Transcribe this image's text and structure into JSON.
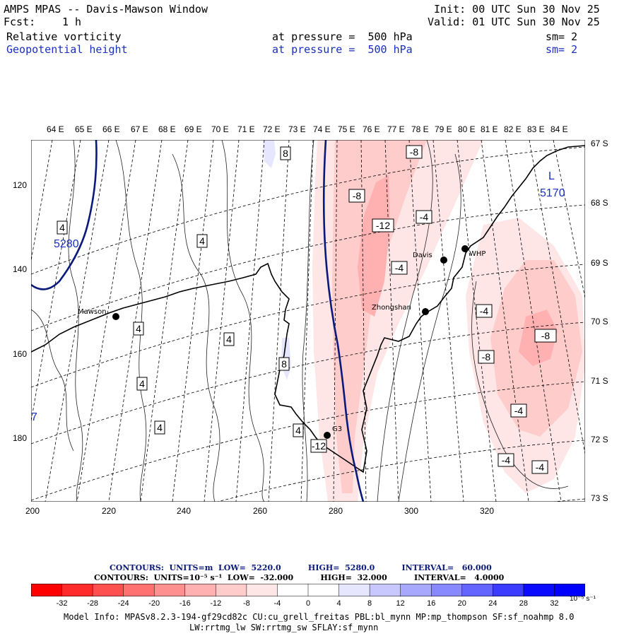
{
  "header": {
    "title": "AMPS MPAS -- Davis-Mawson Window",
    "fcst_label": "Fcst:",
    "fcst_value": "1 h",
    "init": "Init: 00 UTC Sun 30 Nov 25",
    "valid": "Valid: 01 UTC Sun 30 Nov 25",
    "field1": "Relative vorticity",
    "field2": "Geopotential height",
    "pressure1": "at pressure =  500 hPa",
    "pressure2": "at pressure =  500 hPa",
    "sm1": "sm= 2",
    "sm2": "sm= 2"
  },
  "lon_labels": [
    "64 E",
    "65 E",
    "66 E",
    "67 E",
    "68 E",
    "69 E",
    "70 E",
    "71 E",
    "72 E",
    "73 E",
    "74 E",
    "75 E",
    "76 E",
    "77 E",
    "78 E",
    "79 E",
    "80 E",
    "81 E",
    "82 E",
    "83 E",
    "84 E"
  ],
  "lat_labels": [
    "67 S",
    "68 S",
    "69 S",
    "70 S",
    "71 S",
    "72 S",
    "73 S"
  ],
  "x_ticks": [
    "200",
    "220",
    "240",
    "260",
    "280",
    "300",
    "320"
  ],
  "y_ticks": [
    "120",
    "140",
    "160",
    "180"
  ],
  "stations": [
    "Mawson",
    "Davis",
    "Zhongshan",
    "WHP",
    "G3"
  ],
  "height_labels": {
    "high": "5280",
    "low_mark": "L",
    "low": "5170",
    "edge": "7"
  },
  "contour_labels": {
    "vort_pos": [
      "8",
      "8",
      "4"
    ],
    "vort_neg": [
      "-8",
      "-8",
      "-12",
      "-4",
      "-4",
      "-4",
      "-4",
      "-12",
      "-8",
      "-8",
      "-4",
      "-4",
      "-4"
    ],
    "vort_pos_small": [
      "4",
      "4",
      "4",
      "4",
      "4",
      "4"
    ]
  },
  "contours_info": {
    "line1": "CONTOURS:  UNITS=m  LOW=  5220.0          HIGH=  5280.0          INTERVAL=   60.000",
    "line2": "CONTOURS:  UNITS=10⁻⁵ s⁻¹  LOW=  -32.000          HIGH=  32.000          INTERVAL=   4.0000"
  },
  "colorbar": {
    "labels": [
      "-32",
      "-28",
      "-24",
      "-20",
      "-16",
      "-12",
      "-8",
      "-4",
      "0",
      "4",
      "8",
      "12",
      "16",
      "20",
      "24",
      "28",
      "32"
    ],
    "unit": "10⁻⁵ s⁻¹",
    "colors": [
      "#ff0000",
      "#ff2a2a",
      "#ff5050",
      "#ff7070",
      "#ff9090",
      "#ffb0b0",
      "#ffcccc",
      "#ffe6e6",
      "#ffffff",
      "#ffffff",
      "#e6e6ff",
      "#c8c8ff",
      "#a8a8ff",
      "#8888ff",
      "#6464ff",
      "#3c3cff",
      "#0a0aff",
      "#0000ff"
    ]
  },
  "footer": {
    "line1": "Model Info: MPASv8.2.3-194-gf29cd82c CU:cu_grell_freitas PBL:bl_mynn MP:mp_thompson SF:sf_noahmp 8.0",
    "line2": "LW:rrtmg_lw SW:rrtmg_sw SFLAY:sf_mynn"
  },
  "colors": {
    "height_contour": "#0a1a7a",
    "text_blue": "#1a2fbf"
  }
}
